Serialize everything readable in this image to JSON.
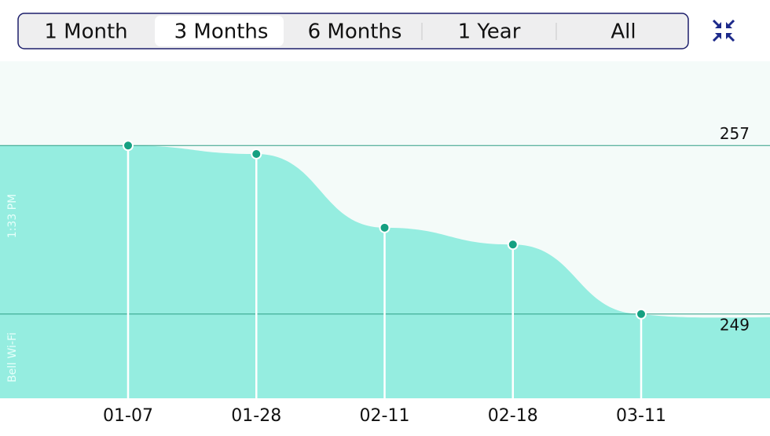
{
  "tabs": {
    "items": [
      "1 Month",
      "3 Months",
      "6 Months",
      "1 Year",
      "All"
    ],
    "selected": 1
  },
  "status": {
    "time": "1:33 PM",
    "network": "Bell Wi-Fi"
  },
  "chart_data": {
    "type": "line",
    "categories": [
      "01-07",
      "01-28",
      "02-11",
      "02-18",
      "03-11"
    ],
    "values": [
      257,
      256.6,
      253.1,
      252.3,
      249
    ],
    "ylim": [
      245,
      261
    ],
    "yticks": [
      249,
      257
    ],
    "color": "#15a081",
    "fill": "#95ede0",
    "grid": true
  }
}
